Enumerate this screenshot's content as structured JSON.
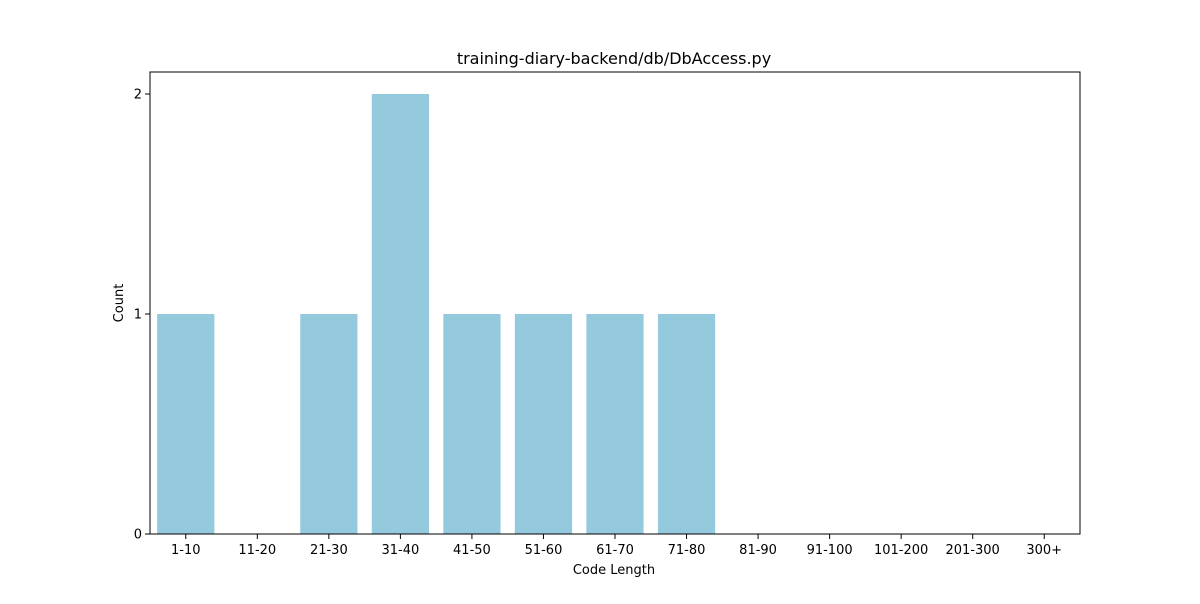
{
  "chart_data": {
    "type": "bar",
    "title": "training-diary-backend/db/DbAccess.py",
    "xlabel": "Code Length",
    "ylabel": "Count",
    "categories": [
      "1-10",
      "11-20",
      "21-30",
      "31-40",
      "41-50",
      "51-60",
      "61-70",
      "71-80",
      "81-90",
      "91-100",
      "101-200",
      "201-300",
      "300+"
    ],
    "values": [
      1,
      0,
      1,
      2,
      1,
      1,
      1,
      1,
      0,
      0,
      0,
      0,
      0
    ],
    "ylim": [
      0,
      2.1
    ],
    "yticks": [
      0,
      1,
      2
    ],
    "grid": false,
    "bar_color": "#95c9de"
  }
}
